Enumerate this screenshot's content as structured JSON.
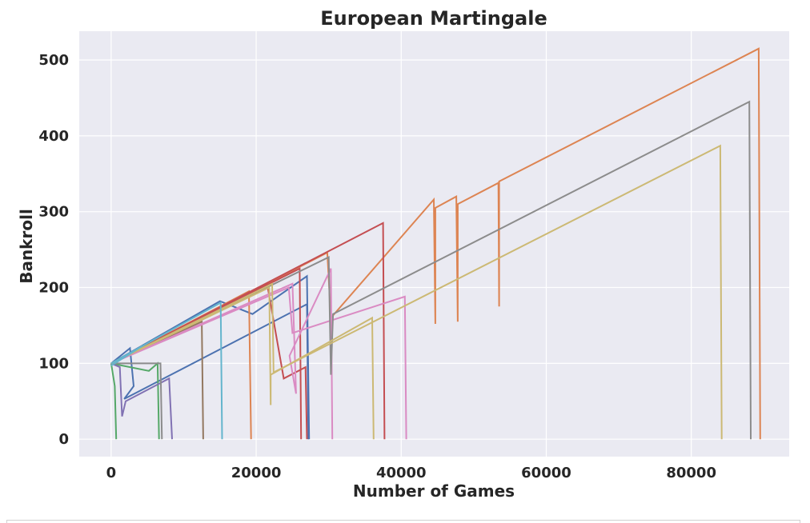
{
  "chart_data": {
    "type": "line",
    "title": "European Martingale",
    "xlabel": "Number of Games",
    "ylabel": "Bankroll",
    "xlim": [
      -4400,
      93500
    ],
    "ylim": [
      -23,
      538
    ],
    "xticks": [
      0,
      20000,
      40000,
      60000,
      80000
    ],
    "xtick_labels": [
      "0",
      "20000",
      "40000",
      "60000",
      "80000"
    ],
    "yticks": [
      0,
      100,
      200,
      300,
      400,
      500
    ],
    "ytick_labels": [
      "0",
      "100",
      "200",
      "300",
      "400",
      "500"
    ],
    "grid": true,
    "background": "#eaeaf2",
    "series": [
      {
        "color": "#4c72b0",
        "points": [
          [
            0,
            100
          ],
          [
            2600,
            120
          ],
          [
            3100,
            70
          ],
          [
            1800,
            53
          ],
          [
            27000,
            178
          ],
          [
            27200,
            0
          ]
        ]
      },
      {
        "color": "#4c72b0",
        "points": [
          [
            0,
            100
          ],
          [
            15000,
            182
          ],
          [
            19500,
            165
          ],
          [
            27000,
            215
          ],
          [
            27300,
            0
          ]
        ]
      },
      {
        "color": "#dd8452",
        "points": [
          [
            0,
            100
          ],
          [
            29800,
            246
          ],
          [
            30300,
            160
          ],
          [
            44500,
            316
          ],
          [
            44700,
            152
          ],
          [
            44700,
            305
          ],
          [
            47600,
            320
          ],
          [
            47800,
            155
          ],
          [
            47800,
            310
          ],
          [
            53400,
            338
          ],
          [
            53500,
            175
          ],
          [
            53500,
            340
          ],
          [
            89300,
            515
          ],
          [
            89500,
            0
          ]
        ]
      },
      {
        "color": "#dd8452",
        "points": [
          [
            0,
            100
          ],
          [
            19000,
            195
          ],
          [
            19300,
            0
          ]
        ]
      },
      {
        "color": "#55a868",
        "points": [
          [
            0,
            100
          ],
          [
            500,
            70
          ],
          [
            700,
            0
          ]
        ]
      },
      {
        "color": "#55a868",
        "points": [
          [
            0,
            100
          ],
          [
            5200,
            90
          ],
          [
            6400,
            100
          ],
          [
            6600,
            0
          ]
        ]
      },
      {
        "color": "#c44e52",
        "points": [
          [
            0,
            100
          ],
          [
            26000,
            225
          ],
          [
            26200,
            0
          ]
        ]
      },
      {
        "color": "#c44e52",
        "points": [
          [
            0,
            100
          ],
          [
            21500,
            205
          ],
          [
            23800,
            80
          ],
          [
            26800,
            95
          ],
          [
            27000,
            0
          ]
        ]
      },
      {
        "color": "#c44e52",
        "points": [
          [
            0,
            100
          ],
          [
            37500,
            285
          ],
          [
            37700,
            0
          ]
        ]
      },
      {
        "color": "#8172b3",
        "points": [
          [
            0,
            100
          ],
          [
            1200,
            95
          ],
          [
            1500,
            30
          ],
          [
            2000,
            50
          ],
          [
            8000,
            80
          ],
          [
            8400,
            0
          ]
        ]
      },
      {
        "color": "#937860",
        "points": [
          [
            0,
            100
          ],
          [
            12500,
            155
          ],
          [
            12700,
            0
          ]
        ]
      },
      {
        "color": "#da8bc3",
        "points": [
          [
            0,
            100
          ],
          [
            25000,
            205
          ],
          [
            25500,
            60
          ],
          [
            24600,
            110
          ],
          [
            30300,
            225
          ],
          [
            30500,
            0
          ]
        ]
      },
      {
        "color": "#da8bc3",
        "points": [
          [
            0,
            100
          ],
          [
            24500,
            200
          ],
          [
            25000,
            140
          ],
          [
            40500,
            188
          ],
          [
            40700,
            0
          ]
        ]
      },
      {
        "color": "#8c8c8c",
        "points": [
          [
            0,
            100
          ],
          [
            6800,
            100
          ],
          [
            7000,
            0
          ]
        ]
      },
      {
        "color": "#8c8c8c",
        "points": [
          [
            0,
            100
          ],
          [
            30000,
            240
          ],
          [
            30300,
            85
          ],
          [
            30600,
            165
          ],
          [
            88000,
            445
          ],
          [
            88200,
            0
          ]
        ]
      },
      {
        "color": "#ccb974",
        "points": [
          [
            0,
            100
          ],
          [
            21800,
            200
          ],
          [
            22000,
            45
          ],
          [
            22000,
            85
          ],
          [
            36000,
            160
          ],
          [
            36200,
            0
          ]
        ]
      },
      {
        "color": "#ccb974",
        "points": [
          [
            0,
            100
          ],
          [
            22200,
            205
          ],
          [
            22400,
            88
          ],
          [
            84000,
            387
          ],
          [
            84200,
            0
          ]
        ]
      },
      {
        "color": "#64b5cd",
        "points": [
          [
            0,
            100
          ],
          [
            15100,
            180
          ],
          [
            15300,
            0
          ]
        ]
      },
      {
        "color": "#64b5cd",
        "points": [
          [
            0,
            97
          ],
          [
            3000,
            115
          ],
          [
            4300,
            123
          ]
        ]
      }
    ]
  }
}
